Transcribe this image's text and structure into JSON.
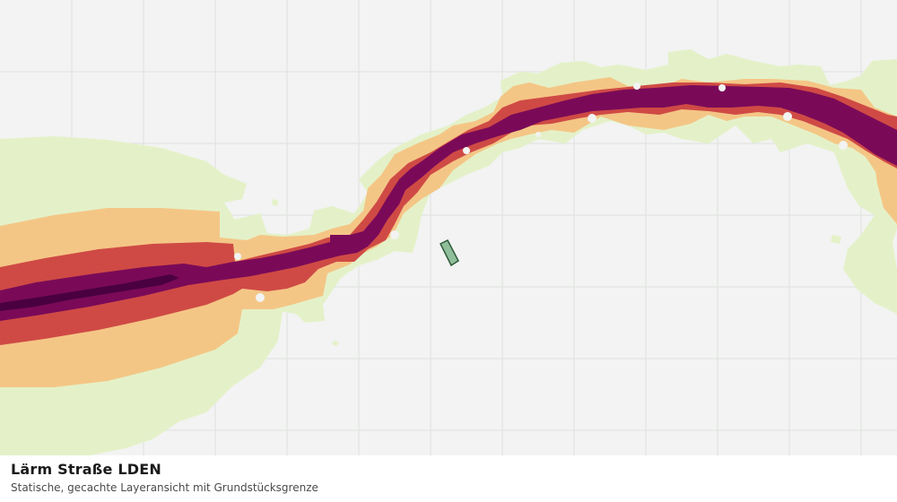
{
  "layer": {
    "title": "Lärm Straße LDEN",
    "subtitle": "Statische, gecachte Layeransicht mit Grundstücksgrenze"
  },
  "map": {
    "background_color": "#f2f3f2",
    "grid_color": "#dfe2df",
    "noise_band_colors": [
      "#e4f1c8",
      "#f4c686",
      "#cf4a45",
      "#7a0a58",
      "#4a0040"
    ],
    "parcel_fill": "#8fbf9a",
    "parcel_stroke": "#2e5a3a"
  }
}
